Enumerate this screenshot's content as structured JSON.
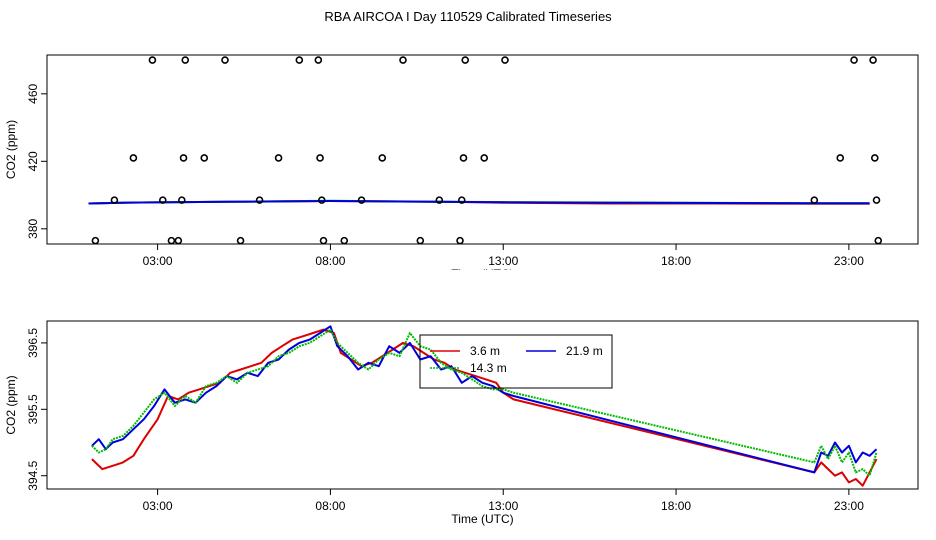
{
  "title": "RBA AIRCOA I  Day 110529  Calibrated Timeseries",
  "chart_data": [
    {
      "type": "scatter",
      "xlabel": "Time (UTC)",
      "ylabel": "CO2 (ppm)",
      "x_ticks": [
        {
          "v": 3,
          "label": "03:00"
        },
        {
          "v": 8,
          "label": "08:00"
        },
        {
          "v": 13,
          "label": "13:00"
        },
        {
          "v": 18,
          "label": "18:00"
        },
        {
          "v": 23,
          "label": "23:00"
        }
      ],
      "y_ticks": [
        {
          "v": 380,
          "label": "380"
        },
        {
          "v": 420,
          "label": "420"
        },
        {
          "v": 460,
          "label": "460"
        }
      ],
      "xlim": [
        -0.2,
        25.0
      ],
      "ylim": [
        371,
        483
      ],
      "points": [
        [
          1.2,
          373
        ],
        [
          1.75,
          397
        ],
        [
          2.3,
          422
        ],
        [
          2.85,
          480
        ],
        [
          3.15,
          397
        ],
        [
          3.4,
          373
        ],
        [
          3.7,
          397
        ],
        [
          3.75,
          422
        ],
        [
          3.8,
          480
        ],
        [
          3.6,
          373
        ],
        [
          4.35,
          422
        ],
        [
          4.95,
          480
        ],
        [
          5.4,
          373
        ],
        [
          5.95,
          397
        ],
        [
          6.5,
          422
        ],
        [
          7.1,
          480
        ],
        [
          7.65,
          480
        ],
        [
          7.7,
          422
        ],
        [
          7.75,
          397
        ],
        [
          7.8,
          373
        ],
        [
          8.4,
          373
        ],
        [
          8.9,
          397
        ],
        [
          9.5,
          422
        ],
        [
          10.1,
          480
        ],
        [
          10.6,
          373
        ],
        [
          11.15,
          397
        ],
        [
          11.75,
          373
        ],
        [
          11.8,
          397
        ],
        [
          11.85,
          422
        ],
        [
          11.9,
          480
        ],
        [
          12.45,
          422
        ],
        [
          13.05,
          480
        ],
        [
          22.0,
          397
        ],
        [
          22.75,
          422
        ],
        [
          23.15,
          480
        ],
        [
          23.7,
          480
        ],
        [
          23.75,
          422
        ],
        [
          23.8,
          397
        ],
        [
          23.85,
          373
        ]
      ],
      "series": [
        {
          "color": "#dd0000",
          "values": [
            [
              1,
              395
            ],
            [
              2,
              395.5
            ],
            [
              5,
              396
            ],
            [
              8,
              396.5
            ],
            [
              11,
              396
            ],
            [
              12,
              395.8
            ],
            [
              13,
              395.5
            ],
            [
              16,
              395
            ],
            [
              19,
              395
            ],
            [
              22,
              394.8
            ],
            [
              23.6,
              394.8
            ]
          ]
        },
        {
          "color": "#00bb00",
          "values": [
            [
              1,
              395
            ],
            [
              2,
              395.5
            ],
            [
              5,
              396
            ],
            [
              8,
              396.6
            ],
            [
              11,
              396.1
            ],
            [
              13,
              395.8
            ],
            [
              22,
              395.2
            ],
            [
              23.6,
              395.2
            ]
          ]
        },
        {
          "color": "#0000dd",
          "values": [
            [
              1,
              395
            ],
            [
              2,
              395.5
            ],
            [
              5,
              396
            ],
            [
              8,
              396.5
            ],
            [
              11,
              396
            ],
            [
              12,
              395.9
            ],
            [
              13,
              395.7
            ],
            [
              16,
              395.5
            ],
            [
              22,
              395.2
            ],
            [
              23.6,
              395.2
            ]
          ]
        }
      ]
    },
    {
      "type": "line",
      "xlabel": "Time (UTC)",
      "ylabel": "CO2 (ppm)",
      "x_ticks": [
        {
          "v": 3,
          "label": "03:00"
        },
        {
          "v": 8,
          "label": "08:00"
        },
        {
          "v": 13,
          "label": "13:00"
        },
        {
          "v": 18,
          "label": "18:00"
        },
        {
          "v": 23,
          "label": "23:00"
        }
      ],
      "y_ticks": [
        {
          "v": 394.5,
          "label": "394.5"
        },
        {
          "v": 395.5,
          "label": "395.5"
        },
        {
          "v": 396.5,
          "label": "396.5"
        }
      ],
      "xlim": [
        -0.2,
        25.0
      ],
      "ylim": [
        394.3,
        396.83
      ],
      "legend": {
        "position": "top-center",
        "entries": [
          {
            "label": "3.6 m",
            "color": "#dd0000"
          },
          {
            "label": "21.9 m",
            "color": "#0000dd"
          },
          {
            "label": "14.3 m",
            "color": "#00bb00"
          }
        ]
      },
      "series": [
        {
          "name": "3.6 m",
          "color": "#dd0000",
          "values": [
            [
              1.1,
              394.75
            ],
            [
              1.4,
              394.6
            ],
            [
              1.7,
              394.65
            ],
            [
              2.0,
              394.7
            ],
            [
              2.3,
              394.8
            ],
            [
              2.6,
              395.05
            ],
            [
              2.8,
              395.2
            ],
            [
              3.0,
              395.35
            ],
            [
              3.3,
              395.7
            ],
            [
              3.6,
              395.65
            ],
            [
              3.9,
              395.75
            ],
            [
              4.2,
              395.8
            ],
            [
              4.5,
              395.85
            ],
            [
              4.8,
              395.9
            ],
            [
              5.1,
              396.05
            ],
            [
              5.4,
              396.1
            ],
            [
              5.7,
              396.15
            ],
            [
              6.0,
              396.2
            ],
            [
              6.3,
              396.35
            ],
            [
              6.6,
              396.45
            ],
            [
              6.9,
              396.55
            ],
            [
              7.2,
              396.6
            ],
            [
              7.5,
              396.65
            ],
            [
              7.8,
              396.7
            ],
            [
              8.1,
              396.65
            ],
            [
              8.3,
              396.35
            ],
            [
              8.6,
              396.25
            ],
            [
              8.9,
              396.15
            ],
            [
              9.2,
              396.2
            ],
            [
              9.5,
              396.3
            ],
            [
              9.8,
              396.4
            ],
            [
              10.1,
              396.5
            ],
            [
              10.4,
              396.45
            ],
            [
              10.7,
              396.35
            ],
            [
              11.0,
              396.25
            ],
            [
              11.3,
              396.2
            ],
            [
              11.6,
              396.1
            ],
            [
              11.9,
              396.05
            ],
            [
              12.2,
              396.0
            ],
            [
              12.5,
              395.95
            ],
            [
              12.8,
              395.9
            ],
            [
              13.0,
              395.75
            ],
            [
              13.3,
              395.65
            ],
            [
              22.0,
              394.55
            ],
            [
              22.2,
              394.7
            ],
            [
              22.4,
              394.6
            ],
            [
              22.6,
              394.5
            ],
            [
              22.8,
              394.55
            ],
            [
              23.0,
              394.4
            ],
            [
              23.2,
              394.45
            ],
            [
              23.4,
              394.35
            ],
            [
              23.6,
              394.55
            ],
            [
              23.8,
              394.75
            ]
          ]
        },
        {
          "name": "21.9 m",
          "color": "#0000dd",
          "values": [
            [
              1.1,
              394.95
            ],
            [
              1.3,
              395.05
            ],
            [
              1.5,
              394.9
            ],
            [
              1.7,
              395.0
            ],
            [
              2.0,
              395.05
            ],
            [
              2.3,
              395.2
            ],
            [
              2.6,
              395.35
            ],
            [
              2.9,
              395.55
            ],
            [
              3.2,
              395.8
            ],
            [
              3.5,
              395.6
            ],
            [
              3.8,
              395.65
            ],
            [
              4.1,
              395.6
            ],
            [
              4.4,
              395.75
            ],
            [
              4.7,
              395.85
            ],
            [
              5.0,
              396.0
            ],
            [
              5.3,
              395.95
            ],
            [
              5.6,
              396.05
            ],
            [
              5.9,
              396.0
            ],
            [
              6.2,
              396.2
            ],
            [
              6.5,
              396.25
            ],
            [
              6.8,
              396.4
            ],
            [
              7.1,
              396.5
            ],
            [
              7.4,
              396.55
            ],
            [
              7.7,
              396.65
            ],
            [
              8.0,
              396.75
            ],
            [
              8.2,
              396.45
            ],
            [
              8.5,
              396.3
            ],
            [
              8.8,
              396.1
            ],
            [
              9.1,
              396.2
            ],
            [
              9.4,
              396.15
            ],
            [
              9.7,
              396.45
            ],
            [
              10.0,
              396.35
            ],
            [
              10.3,
              396.5
            ],
            [
              10.6,
              396.25
            ],
            [
              10.9,
              396.3
            ],
            [
              11.2,
              396.1
            ],
            [
              11.5,
              396.15
            ],
            [
              11.8,
              395.9
            ],
            [
              12.1,
              396.0
            ],
            [
              12.4,
              395.9
            ],
            [
              12.7,
              395.85
            ],
            [
              13.0,
              395.75
            ],
            [
              13.3,
              395.7
            ],
            [
              22.0,
              394.55
            ],
            [
              22.2,
              394.85
            ],
            [
              22.4,
              394.8
            ],
            [
              22.6,
              395.0
            ],
            [
              22.8,
              394.85
            ],
            [
              23.0,
              394.95
            ],
            [
              23.2,
              394.7
            ],
            [
              23.4,
              394.85
            ],
            [
              23.6,
              394.8
            ],
            [
              23.8,
              394.9
            ]
          ]
        },
        {
          "name": "14.3 m",
          "color": "#00bb00",
          "values": [
            [
              1.1,
              394.95
            ],
            [
              1.3,
              394.85
            ],
            [
              1.5,
              394.9
            ],
            [
              1.7,
              395.05
            ],
            [
              2.0,
              395.1
            ],
            [
              2.3,
              395.25
            ],
            [
              2.6,
              395.45
            ],
            [
              2.9,
              395.65
            ],
            [
              3.2,
              395.75
            ],
            [
              3.5,
              395.55
            ],
            [
              3.8,
              395.7
            ],
            [
              4.1,
              395.6
            ],
            [
              4.4,
              395.85
            ],
            [
              4.7,
              395.9
            ],
            [
              5.0,
              396.0
            ],
            [
              5.3,
              395.9
            ],
            [
              5.6,
              396.05
            ],
            [
              5.9,
              396.1
            ],
            [
              6.2,
              396.15
            ],
            [
              6.5,
              396.3
            ],
            [
              6.8,
              396.35
            ],
            [
              7.1,
              396.45
            ],
            [
              7.4,
              396.5
            ],
            [
              7.7,
              396.6
            ],
            [
              8.0,
              396.7
            ],
            [
              8.2,
              396.5
            ],
            [
              8.5,
              396.35
            ],
            [
              8.8,
              396.2
            ],
            [
              9.1,
              396.1
            ],
            [
              9.4,
              396.25
            ],
            [
              9.7,
              396.35
            ],
            [
              10.0,
              396.3
            ],
            [
              10.3,
              396.65
            ],
            [
              10.6,
              396.45
            ],
            [
              10.9,
              396.4
            ],
            [
              11.2,
              396.2
            ],
            [
              11.5,
              396.1
            ],
            [
              11.8,
              396.05
            ],
            [
              12.1,
              395.95
            ],
            [
              12.4,
              395.85
            ],
            [
              12.7,
              395.8
            ],
            [
              13.0,
              395.8
            ],
            [
              13.3,
              395.75
            ],
            [
              22.0,
              394.7
            ],
            [
              22.2,
              394.95
            ],
            [
              22.4,
              394.75
            ],
            [
              22.6,
              394.95
            ],
            [
              22.8,
              394.7
            ],
            [
              23.0,
              394.85
            ],
            [
              23.2,
              394.55
            ],
            [
              23.4,
              394.6
            ],
            [
              23.6,
              394.5
            ],
            [
              23.8,
              394.85
            ]
          ]
        }
      ]
    }
  ]
}
